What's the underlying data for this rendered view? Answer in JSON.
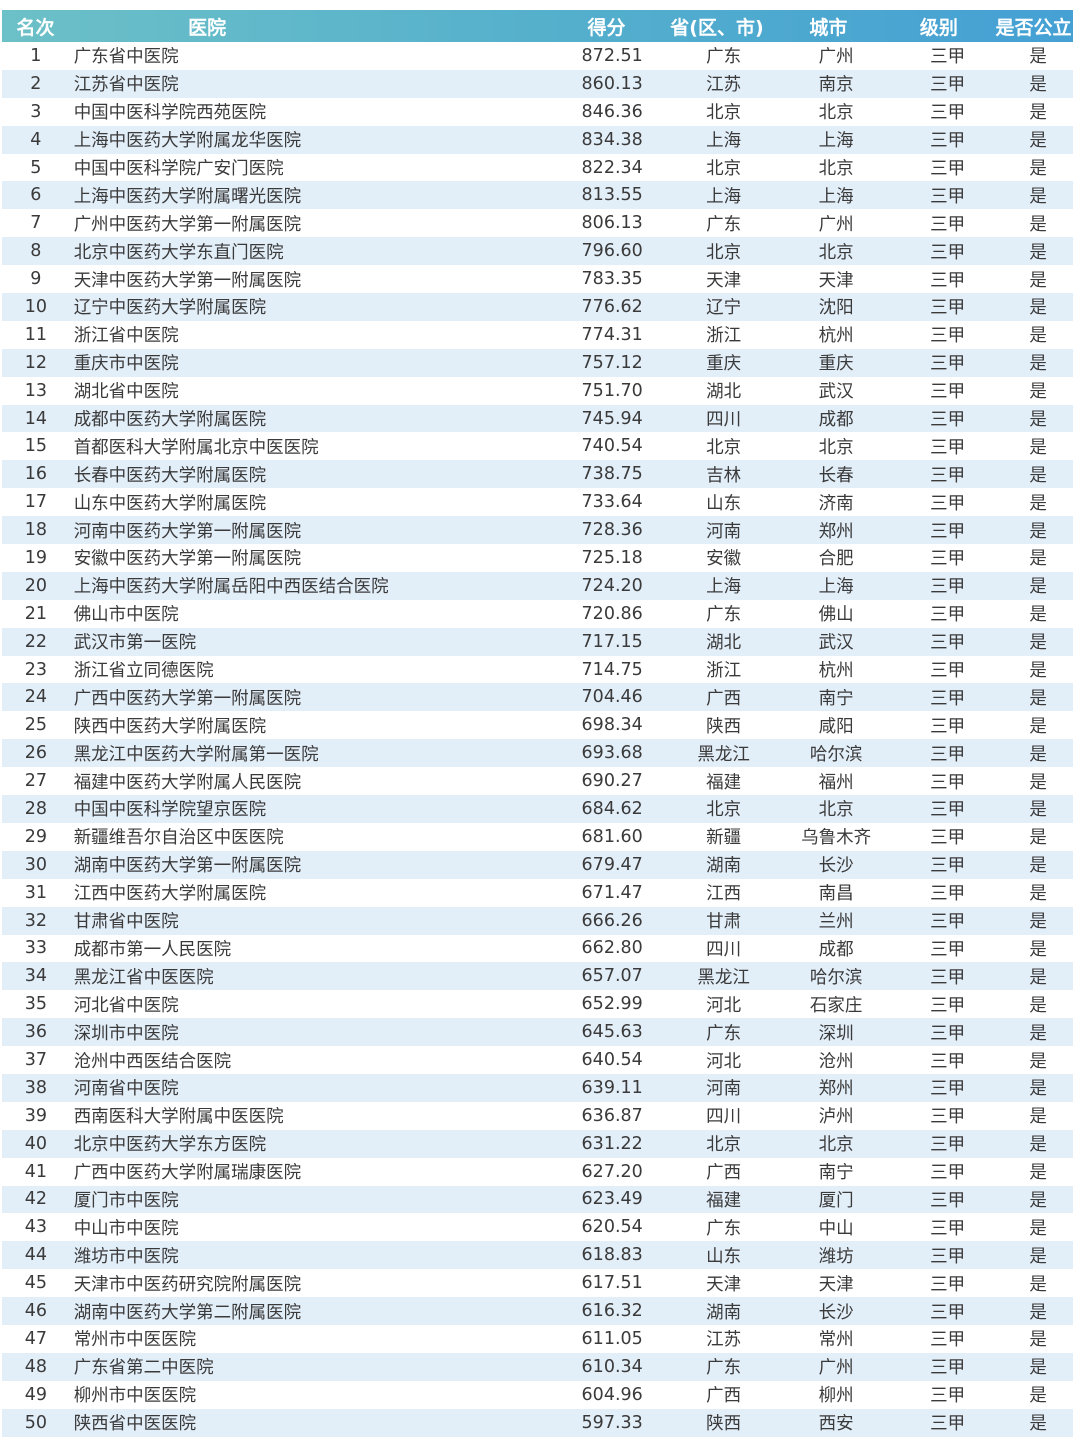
{
  "header": {
    "rank": "名次",
    "hospital": "医院",
    "score": "得分",
    "province": "省(区、市)",
    "city": "城市",
    "level": "级别",
    "public": "是否公立"
  },
  "colors": {
    "header_start": "#6cc0c7",
    "header_end": "#45a0d4",
    "alt_row": "#e2eef8"
  },
  "rows": [
    [
      "1",
      "广东省中医院",
      "872.51",
      "广东",
      "广州",
      "三甲",
      "是"
    ],
    [
      "2",
      "江苏省中医院",
      "860.13",
      "江苏",
      "南京",
      "三甲",
      "是"
    ],
    [
      "3",
      "中国中医科学院西苑医院",
      "846.36",
      "北京",
      "北京",
      "三甲",
      "是"
    ],
    [
      "4",
      "上海中医药大学附属龙华医院",
      "834.38",
      "上海",
      "上海",
      "三甲",
      "是"
    ],
    [
      "5",
      "中国中医科学院广安门医院",
      "822.34",
      "北京",
      "北京",
      "三甲",
      "是"
    ],
    [
      "6",
      "上海中医药大学附属曙光医院",
      "813.55",
      "上海",
      "上海",
      "三甲",
      "是"
    ],
    [
      "7",
      "广州中医药大学第一附属医院",
      "806.13",
      "广东",
      "广州",
      "三甲",
      "是"
    ],
    [
      "8",
      "北京中医药大学东直门医院",
      "796.60",
      "北京",
      "北京",
      "三甲",
      "是"
    ],
    [
      "9",
      "天津中医药大学第一附属医院",
      "783.35",
      "天津",
      "天津",
      "三甲",
      "是"
    ],
    [
      "10",
      "辽宁中医药大学附属医院",
      "776.62",
      "辽宁",
      "沈阳",
      "三甲",
      "是"
    ],
    [
      "11",
      "浙江省中医院",
      "774.31",
      "浙江",
      "杭州",
      "三甲",
      "是"
    ],
    [
      "12",
      "重庆市中医院",
      "757.12",
      "重庆",
      "重庆",
      "三甲",
      "是"
    ],
    [
      "13",
      "湖北省中医院",
      "751.70",
      "湖北",
      "武汉",
      "三甲",
      "是"
    ],
    [
      "14",
      "成都中医药大学附属医院",
      "745.94",
      "四川",
      "成都",
      "三甲",
      "是"
    ],
    [
      "15",
      "首都医科大学附属北京中医医院",
      "740.54",
      "北京",
      "北京",
      "三甲",
      "是"
    ],
    [
      "16",
      "长春中医药大学附属医院",
      "738.75",
      "吉林",
      "长春",
      "三甲",
      "是"
    ],
    [
      "17",
      "山东中医药大学附属医院",
      "733.64",
      "山东",
      "济南",
      "三甲",
      "是"
    ],
    [
      "18",
      "河南中医药大学第一附属医院",
      "728.36",
      "河南",
      "郑州",
      "三甲",
      "是"
    ],
    [
      "19",
      "安徽中医药大学第一附属医院",
      "725.18",
      "安徽",
      "合肥",
      "三甲",
      "是"
    ],
    [
      "20",
      "上海中医药大学附属岳阳中西医结合医院",
      "724.20",
      "上海",
      "上海",
      "三甲",
      "是"
    ],
    [
      "21",
      "佛山市中医院",
      "720.86",
      "广东",
      "佛山",
      "三甲",
      "是"
    ],
    [
      "22",
      "武汉市第一医院",
      "717.15",
      "湖北",
      "武汉",
      "三甲",
      "是"
    ],
    [
      "23",
      "浙江省立同德医院",
      "714.75",
      "浙江",
      "杭州",
      "三甲",
      "是"
    ],
    [
      "24",
      "广西中医药大学第一附属医院",
      "704.46",
      "广西",
      "南宁",
      "三甲",
      "是"
    ],
    [
      "25",
      "陕西中医药大学附属医院",
      "698.34",
      "陕西",
      "咸阳",
      "三甲",
      "是"
    ],
    [
      "26",
      "黑龙江中医药大学附属第一医院",
      "693.68",
      "黑龙江",
      "哈尔滨",
      "三甲",
      "是"
    ],
    [
      "27",
      "福建中医药大学附属人民医院",
      "690.27",
      "福建",
      "福州",
      "三甲",
      "是"
    ],
    [
      "28",
      "中国中医科学院望京医院",
      "684.62",
      "北京",
      "北京",
      "三甲",
      "是"
    ],
    [
      "29",
      "新疆维吾尔自治区中医医院",
      "681.60",
      "新疆",
      "乌鲁木齐",
      "三甲",
      "是"
    ],
    [
      "30",
      "湖南中医药大学第一附属医院",
      "679.47",
      "湖南",
      "长沙",
      "三甲",
      "是"
    ],
    [
      "31",
      "江西中医药大学附属医院",
      "671.47",
      "江西",
      "南昌",
      "三甲",
      "是"
    ],
    [
      "32",
      "甘肃省中医院",
      "666.26",
      "甘肃",
      "兰州",
      "三甲",
      "是"
    ],
    [
      "33",
      "成都市第一人民医院",
      "662.80",
      "四川",
      "成都",
      "三甲",
      "是"
    ],
    [
      "34",
      "黑龙江省中医医院",
      "657.07",
      "黑龙江",
      "哈尔滨",
      "三甲",
      "是"
    ],
    [
      "35",
      "河北省中医院",
      "652.99",
      "河北",
      "石家庄",
      "三甲",
      "是"
    ],
    [
      "36",
      "深圳市中医院",
      "645.63",
      "广东",
      "深圳",
      "三甲",
      "是"
    ],
    [
      "37",
      "沧州中西医结合医院",
      "640.54",
      "河北",
      "沧州",
      "三甲",
      "是"
    ],
    [
      "38",
      "河南省中医院",
      "639.11",
      "河南",
      "郑州",
      "三甲",
      "是"
    ],
    [
      "39",
      "西南医科大学附属中医医院",
      "636.87",
      "四川",
      "泸州",
      "三甲",
      "是"
    ],
    [
      "40",
      "北京中医药大学东方医院",
      "631.22",
      "北京",
      "北京",
      "三甲",
      "是"
    ],
    [
      "41",
      "广西中医药大学附属瑞康医院",
      "627.20",
      "广西",
      "南宁",
      "三甲",
      "是"
    ],
    [
      "42",
      "厦门市中医院",
      "623.49",
      "福建",
      "厦门",
      "三甲",
      "是"
    ],
    [
      "43",
      "中山市中医院",
      "620.54",
      "广东",
      "中山",
      "三甲",
      "是"
    ],
    [
      "44",
      "潍坊市中医院",
      "618.83",
      "山东",
      "潍坊",
      "三甲",
      "是"
    ],
    [
      "45",
      "天津市中医药研究院附属医院",
      "617.51",
      "天津",
      "天津",
      "三甲",
      "是"
    ],
    [
      "46",
      "湖南中医药大学第二附属医院",
      "616.32",
      "湖南",
      "长沙",
      "三甲",
      "是"
    ],
    [
      "47",
      "常州市中医医院",
      "611.05",
      "江苏",
      "常州",
      "三甲",
      "是"
    ],
    [
      "48",
      "广东省第二中医院",
      "610.34",
      "广东",
      "广州",
      "三甲",
      "是"
    ],
    [
      "49",
      "柳州市中医医院",
      "604.96",
      "广西",
      "柳州",
      "三甲",
      "是"
    ],
    [
      "50",
      "陕西省中医医院",
      "597.33",
      "陕西",
      "西安",
      "三甲",
      "是"
    ]
  ]
}
